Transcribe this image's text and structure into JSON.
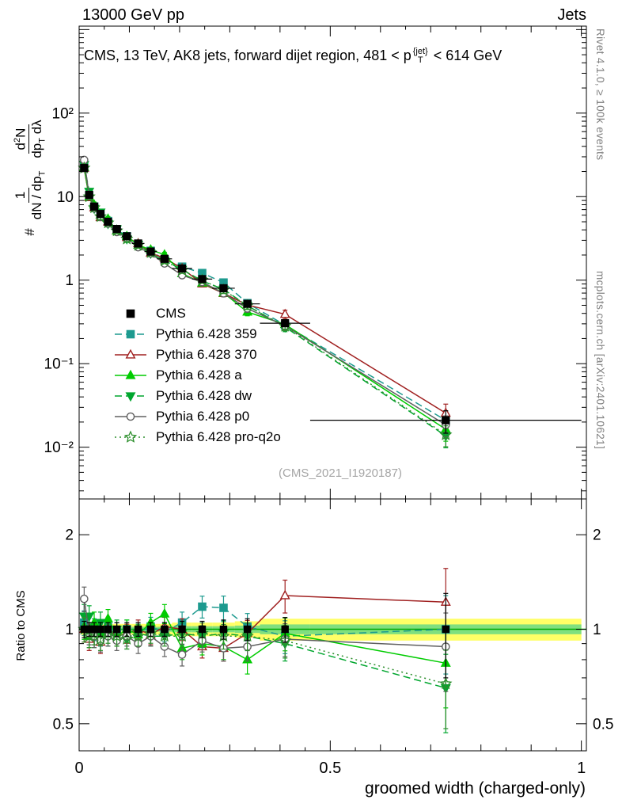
{
  "header": {
    "left": "13000 GeV pp",
    "right": "Jets"
  },
  "title": {
    "pre": "CMS, 13 TeV, AK8 jets, forward dijet region, 481 < p",
    "sub": "T",
    "sup": "{jet}",
    "post": " < 614 GeV"
  },
  "watermark": "(CMS_2021_I1920187)",
  "side_notes": {
    "top_right": "Rivet 4.1.0, ≥ 100k events",
    "bottom_right": "mcplots.cern.ch [arXiv:2401.10621]"
  },
  "axes": {
    "xlabel": "groomed width (charged-only)",
    "ratio_ylabel": "Ratio to CMS",
    "ylabel": {
      "hash": "#",
      "num1": "1",
      "den1": "dN / dp",
      "den1_sub": "T",
      "num2_a": "d",
      "num2_sup": "2",
      "num2_b": "N",
      "den2_a": "dp",
      "den2_sub": "T",
      "den2_b": " dλ"
    },
    "xticks": [
      {
        "v": 0,
        "label": "0"
      },
      {
        "v": 0.5,
        "label": "0.5"
      },
      {
        "v": 1,
        "label": "1"
      }
    ],
    "main_yticks": [
      {
        "v": 100,
        "label": "10²"
      },
      {
        "v": 10,
        "label": "10"
      },
      {
        "v": 1,
        "label": "1"
      },
      {
        "v": 0.1,
        "label": "10⁻¹"
      },
      {
        "v": 0.01,
        "label": "10⁻²"
      }
    ],
    "ratio_yticks": [
      {
        "v": 2,
        "label": "2"
      },
      {
        "v": 1,
        "label": "1"
      },
      {
        "v": 0.5,
        "label": "0.5"
      }
    ]
  },
  "chart_data": {
    "type": "line",
    "title": "CMS, 13 TeV, AK8 jets, forward dijet region, 481 < pT{jet} < 614 GeV",
    "xlabel": "groomed width (charged-only)",
    "ylabel": "# 1/(dN/dpT) d²N/(dpT dλ)",
    "ratio_ylabel": "Ratio to CMS",
    "ylog": true,
    "xlim": [
      0,
      1.01
    ],
    "main_ylim": [
      0.0024,
      1100
    ],
    "ratio_ylim": [
      0.41,
      2.6
    ],
    "bin_edges": [
      0.005,
      0.015,
      0.025,
      0.035,
      0.05,
      0.065,
      0.085,
      0.105,
      0.13,
      0.155,
      0.185,
      0.225,
      0.265,
      0.31,
      0.36,
      0.46,
      1.0
    ],
    "x": [
      0.01,
      0.02,
      0.03,
      0.0425,
      0.0575,
      0.075,
      0.095,
      0.1175,
      0.1425,
      0.17,
      0.205,
      0.245,
      0.2875,
      0.335,
      0.41,
      0.73
    ],
    "cms": {
      "name": "CMS",
      "color": "#000000",
      "marker": "square",
      "filled": true,
      "values": [
        22,
        10.5,
        7.6,
        6.2,
        5.0,
        4.1,
        3.35,
        2.75,
        2.2,
        1.8,
        1.38,
        1.03,
        0.8,
        0.52,
        0.305,
        0.021
      ],
      "err_rel": [
        0.06,
        0.05,
        0.05,
        0.05,
        0.05,
        0.05,
        0.05,
        0.05,
        0.05,
        0.05,
        0.06,
        0.06,
        0.07,
        0.08,
        0.09,
        0.3
      ]
    },
    "mc_err_rel": [
      0.09,
      0.08,
      0.08,
      0.08,
      0.07,
      0.07,
      0.07,
      0.07,
      0.07,
      0.07,
      0.08,
      0.08,
      0.09,
      0.1,
      0.12,
      0.28
    ],
    "band": {
      "yellow_rel": [
        0.05,
        0.04,
        0.04,
        0.04,
        0.04,
        0.04,
        0.04,
        0.04,
        0.04,
        0.04,
        0.05,
        0.05,
        0.05,
        0.06,
        0.08,
        0.08
      ],
      "green_frac": 0.45,
      "yellow": "#ffff66",
      "green": "#7fdf7f",
      "line": "#00aa00"
    },
    "series": [
      {
        "name": "Pythia 6.428 359",
        "color": "#1d9a8f",
        "line": "dashed",
        "marker": "square",
        "filled": true,
        "ratio": [
          1.05,
          0.97,
          1.0,
          0.96,
          1.02,
          0.98,
          1.0,
          0.97,
          1.02,
          0.98,
          1.05,
          1.18,
          1.17,
          1.02,
          0.95,
          1.0
        ]
      },
      {
        "name": "Pythia 6.428 370",
        "color": "#a02020",
        "line": "solid",
        "marker": "triangle-up",
        "filled": false,
        "ratio": [
          1.0,
          0.93,
          0.97,
          0.91,
          1.0,
          0.95,
          0.97,
          1.0,
          0.96,
          1.02,
          1.0,
          0.88,
          0.87,
          0.97,
          1.28,
          1.22
        ]
      },
      {
        "name": "Pythia 6.428 a",
        "color": "#00cc00",
        "line": "solid",
        "marker": "triangle-up",
        "filled": true,
        "ratio": [
          1.02,
          0.95,
          1.05,
          0.97,
          1.08,
          0.95,
          1.0,
          0.96,
          1.05,
          1.12,
          0.87,
          0.9,
          0.88,
          0.8,
          0.97,
          0.78
        ]
      },
      {
        "name": "Pythia 6.428 dw",
        "color": "#00a62e",
        "line": "dashed",
        "marker": "triangle-down",
        "filled": true,
        "ratio": [
          1.1,
          1.1,
          0.95,
          1.05,
          0.95,
          1.0,
          0.93,
          0.97,
          0.95,
          0.95,
          0.97,
          0.95,
          0.97,
          0.95,
          0.9,
          0.65
        ]
      },
      {
        "name": "Pythia 6.428 p0",
        "color": "#606060",
        "line": "solid",
        "marker": "circle",
        "filled": false,
        "ratio": [
          1.25,
          0.97,
          0.95,
          0.92,
          0.95,
          0.92,
          0.95,
          0.9,
          0.95,
          0.88,
          0.83,
          0.92,
          0.87,
          0.88,
          0.93,
          0.88
        ]
      },
      {
        "name": "Pythia 6.428 pro-q2o",
        "color": "#2d8f2d",
        "line": "dotted",
        "marker": "star",
        "filled": false,
        "ratio": [
          1.0,
          0.95,
          0.97,
          0.93,
          0.97,
          0.95,
          0.93,
          0.95,
          0.97,
          0.95,
          0.95,
          0.97,
          0.95,
          0.95,
          0.92,
          0.67
        ]
      }
    ]
  }
}
